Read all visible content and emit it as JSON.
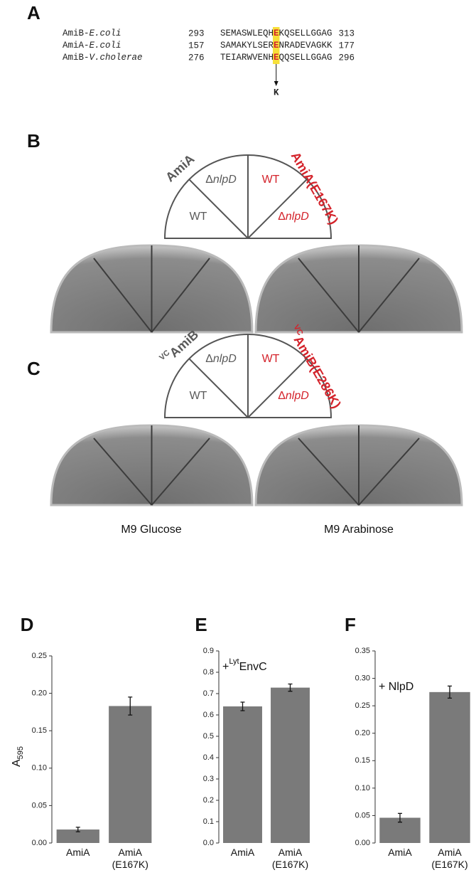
{
  "panel_a": {
    "label": "A",
    "mutation": "K",
    "rows": [
      {
        "protein": "AmiB-",
        "species": "E.coli",
        "start": "293",
        "before": "SEMASWLEQH",
        "site": "E",
        "after": "KQSELLGGAG",
        "end": "313"
      },
      {
        "protein": "AmiA-",
        "species": "E.coli",
        "start": "157",
        "before": "SAMAKYLSER",
        "site": "E",
        "after": "NRADEVAGKK",
        "end": "177"
      },
      {
        "protein": "AmiB-",
        "species": "V.cholerae",
        "start": "276",
        "before": "TEIARWVENH",
        "site": "E",
        "after": "QQSELLGGAG",
        "end": "296"
      }
    ]
  },
  "panel_b": {
    "label": "B",
    "left_group": {
      "name": "AmiA"
    },
    "right_group": {
      "name": "AmiA(E167K)"
    },
    "sectors": [
      {
        "text": "WT"
      },
      {
        "prefix": "Δ",
        "gene": "nlpD"
      },
      {
        "text": "WT"
      },
      {
        "prefix": "Δ",
        "gene": "nlpD"
      }
    ]
  },
  "panel_c": {
    "label": "C",
    "left_group": {
      "superscript": "VC",
      "name": "AmiB"
    },
    "right_group": {
      "superscript": "VC",
      "name": "AmiB(E286K)"
    },
    "sectors": [
      {
        "text": "WT"
      },
      {
        "prefix": "Δ",
        "gene": "nlpD"
      },
      {
        "text": "WT"
      },
      {
        "prefix": "Δ",
        "gene": "nlpD"
      }
    ],
    "captions": [
      "M9 Glucose",
      "M9 Arabinose"
    ]
  },
  "chart_data": [
    {
      "type": "bar",
      "panel": "D",
      "y_label": {
        "main": "A",
        "subscript": "595"
      },
      "categories": [
        "AmiA",
        "AmiA (E167K)"
      ],
      "values": [
        0.018,
        0.183
      ],
      "errors": [
        0.003,
        0.012
      ],
      "color": "#7a7a7a",
      "ylim": [
        0,
        0.25
      ],
      "yticks": [
        {
          "value": 0,
          "label": "0.00"
        },
        {
          "value": 0.05,
          "label": "0.05"
        },
        {
          "value": 0.1,
          "label": "0.10"
        },
        {
          "value": 0.15,
          "label": "0.15"
        },
        {
          "value": 0.2,
          "label": "0.20"
        },
        {
          "value": 0.25,
          "label": "0.25"
        }
      ]
    },
    {
      "type": "bar",
      "panel": "E",
      "annotation": {
        "prefix": "+",
        "superscript": "Lyt",
        "text": "EnvC"
      },
      "categories": [
        "AmiA",
        "AmiA (E167K)"
      ],
      "values": [
        0.64,
        0.728
      ],
      "errors": [
        0.02,
        0.017
      ],
      "color": "#7a7a7a",
      "ylim": [
        0,
        0.9
      ],
      "yticks": [
        {
          "value": 0,
          "label": "0.0"
        },
        0.1,
        0.2,
        0.3,
        0.4,
        0.5,
        0.6,
        0.7,
        0.8,
        0.9
      ]
    },
    {
      "type": "bar",
      "panel": "F",
      "annotation": {
        "text": "+ NlpD"
      },
      "categories": [
        "AmiA",
        "AmiA (E167K)"
      ],
      "values": [
        0.046,
        0.275
      ],
      "errors": [
        0.008,
        0.011
      ],
      "color": "#7a7a7a",
      "ylim": [
        0,
        0.35
      ],
      "yticks": [
        {
          "value": 0,
          "label": "0.00"
        },
        {
          "value": 0.05,
          "label": "0.05"
        },
        {
          "value": 0.1,
          "label": "0.10"
        },
        {
          "value": 0.15,
          "label": "0.15"
        },
        {
          "value": 0.2,
          "label": "0.20"
        },
        {
          "value": 0.25,
          "label": "0.25"
        },
        {
          "value": 0.3,
          "label": "0.30"
        },
        {
          "value": 0.35,
          "label": "0.35"
        }
      ]
    }
  ]
}
